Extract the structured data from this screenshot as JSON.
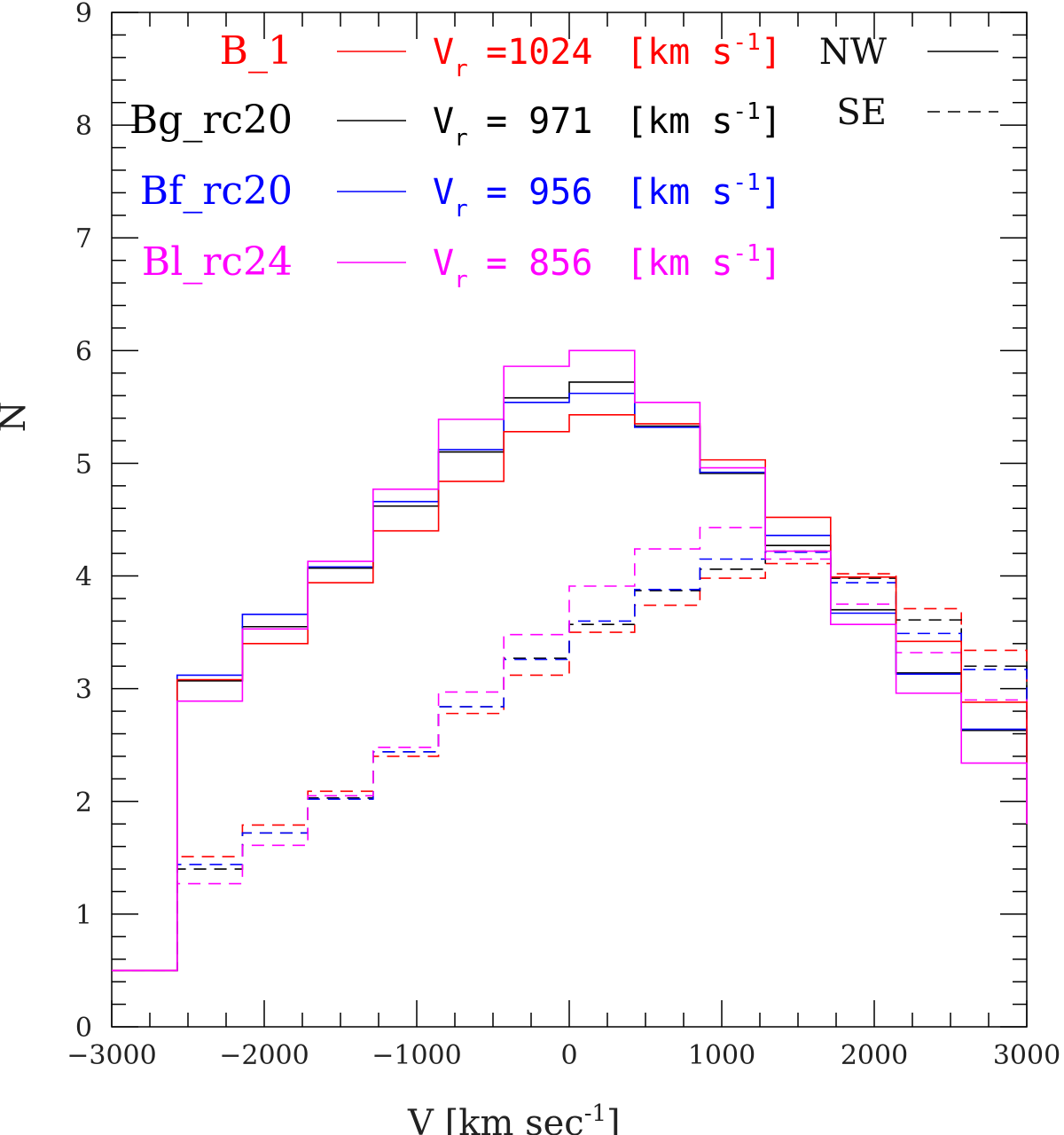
{
  "chart_data": {
    "type": "step-histogram",
    "title": "",
    "xlabel": "V [km sec",
    "xlabel_sup": "-1",
    "xlabel_close": "]",
    "ylabel": "N",
    "xlim": [
      -3000,
      3000
    ],
    "ylim": [
      0,
      9
    ],
    "x_ticks": [
      "-3000",
      "-2000",
      "-1000",
      "0",
      "1000",
      "2000",
      "3000"
    ],
    "y_ticks": [
      "0",
      "1",
      "2",
      "3",
      "4",
      "5",
      "6",
      "7",
      "8",
      "9"
    ],
    "bin_edges": [
      -3000,
      -2571,
      -2143,
      -1714,
      -1286,
      -857,
      -429,
      0,
      429,
      857,
      1286,
      1714,
      2143,
      2571,
      3000
    ],
    "end_drop": 1.8,
    "series": [
      {
        "name": "B_1",
        "color": "#ff0000",
        "vel_value": "=1024",
        "unit": "[km s",
        "sup": "-1",
        "close": "]",
        "nw": [
          0.5,
          3.08,
          3.4,
          3.94,
          4.4,
          4.84,
          5.28,
          5.43,
          5.35,
          5.03,
          4.52,
          3.99,
          3.42,
          2.88
        ],
        "se": [
          0.5,
          1.51,
          1.79,
          2.09,
          2.4,
          2.78,
          3.12,
          3.5,
          3.74,
          3.98,
          4.11,
          4.02,
          3.71,
          3.34
        ]
      },
      {
        "name": "Bg_rc20",
        "color": "#000000",
        "vel_value": "=  971",
        "unit": "[km s",
        "sup": "-1",
        "close": "]",
        "nw": [
          0.5,
          3.07,
          3.55,
          4.07,
          4.62,
          5.1,
          5.58,
          5.72,
          5.33,
          4.91,
          4.27,
          3.7,
          3.14,
          2.63
        ],
        "se": [
          0.5,
          1.4,
          1.72,
          2.03,
          2.44,
          2.84,
          3.27,
          3.57,
          3.87,
          4.06,
          4.22,
          3.98,
          3.61,
          3.2
        ]
      },
      {
        "name": "Bf_rc20",
        "color": "#0000ff",
        "vel_value": "=  956",
        "unit": "[km s",
        "sup": "-1",
        "close": "]",
        "nw": [
          0.5,
          3.12,
          3.66,
          4.08,
          4.66,
          5.12,
          5.54,
          5.62,
          5.32,
          4.92,
          4.36,
          3.67,
          3.13,
          2.64
        ],
        "se": [
          0.5,
          1.44,
          1.72,
          2.02,
          2.44,
          2.84,
          3.26,
          3.6,
          3.88,
          4.15,
          4.21,
          3.94,
          3.49,
          3.17
        ]
      },
      {
        "name": "Bl_rc24",
        "color": "#ff00ff",
        "vel_value": "=  856",
        "unit": "[km s",
        "sup": "-1",
        "close": "]",
        "nw": [
          0.5,
          2.89,
          3.53,
          4.13,
          4.77,
          5.39,
          5.86,
          6.0,
          5.54,
          4.96,
          4.22,
          3.57,
          2.96,
          2.34
        ],
        "se": [
          0.5,
          1.27,
          1.61,
          2.05,
          2.48,
          2.97,
          3.48,
          3.91,
          4.24,
          4.43,
          4.15,
          3.75,
          3.32,
          2.9
        ]
      }
    ],
    "vel_symbol": "V",
    "vel_sub": "r",
    "line_styles": [
      {
        "label": "NW",
        "style": "solid"
      },
      {
        "label": "SE",
        "style": "dashed"
      }
    ]
  }
}
